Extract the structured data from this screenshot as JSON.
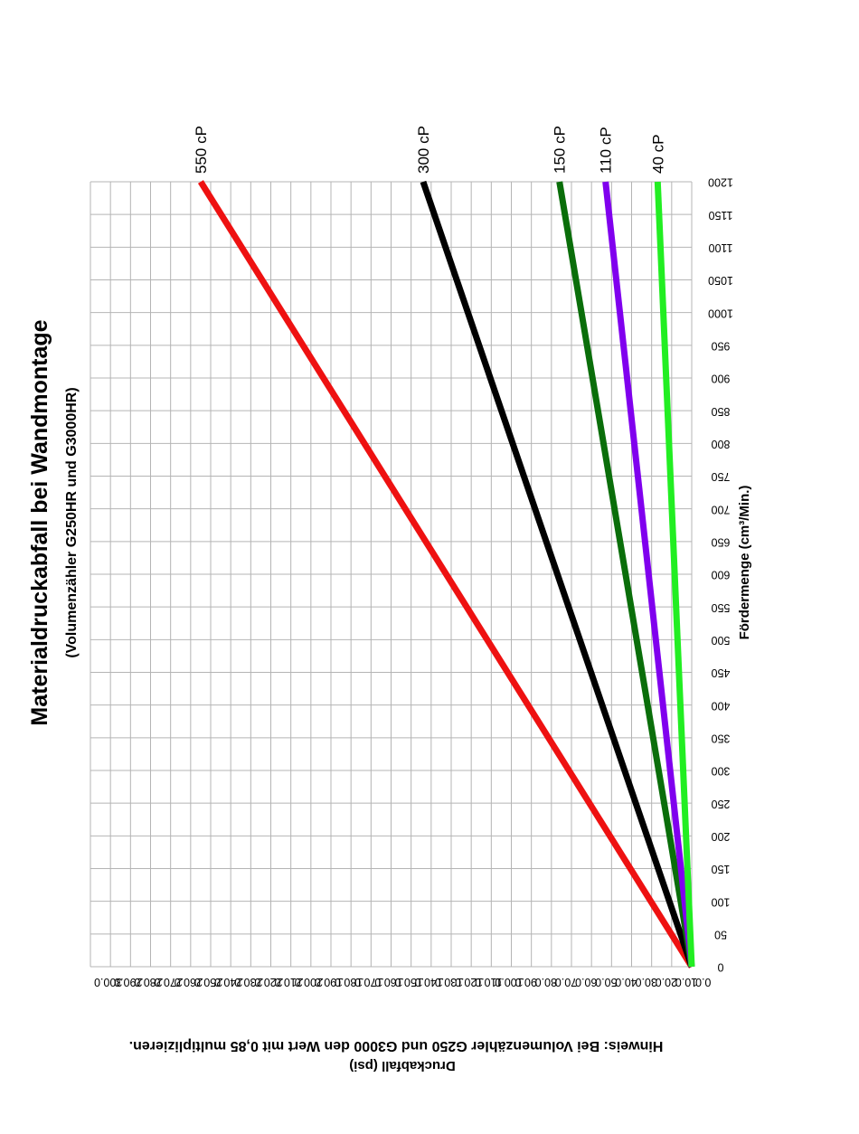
{
  "chart_data": {
    "type": "line",
    "title": "Materialdruckabfall bei Wandmontage",
    "subtitle": "(Volumenzähler G250HR und G3000HR)",
    "xlabel": "Fördermenge (cm³/Min.)",
    "ylabel": "Druckabfall (psi)",
    "note": "Hinweis: Bei Volumenzähler G250 und G3000 den Wert mit 0,85 multiplizieren.",
    "xlim": [
      0,
      1200
    ],
    "ylim": [
      0,
      300
    ],
    "grid": true,
    "x_ticks": [
      "0",
      "50",
      "100",
      "150",
      "200",
      "250",
      "300",
      "350",
      "400",
      "450",
      "500",
      "550",
      "600",
      "650",
      "700",
      "750",
      "800",
      "850",
      "900",
      "950",
      "1000",
      "1050",
      "1100",
      "1150",
      "1200"
    ],
    "y_ticks": [
      "0.0",
      "10.0",
      "20.0",
      "30.0",
      "40.0",
      "50.0",
      "60.0",
      "70.0",
      "80.0",
      "90.0",
      "100.0",
      "110.0",
      "120.0",
      "130.0",
      "140.0",
      "150.0",
      "160.0",
      "170.0",
      "180.0",
      "190.0",
      "200.0",
      "210.0",
      "220.0",
      "230.0",
      "240.0",
      "250.0",
      "260.0",
      "270.0",
      "280.0",
      "290.0",
      "300.0"
    ],
    "series": [
      {
        "name": "550 cP",
        "color": "#ee1111",
        "x": [
          0,
          1200
        ],
        "y": [
          0,
          245
        ]
      },
      {
        "name": "300 cP",
        "color": "#000000",
        "x": [
          0,
          1200
        ],
        "y": [
          0,
          134
        ]
      },
      {
        "name": "150 cP",
        "color": "#0a6e0a",
        "x": [
          0,
          1200
        ],
        "y": [
          0,
          66
        ]
      },
      {
        "name": "110 cP",
        "color": "#8000ee",
        "x": [
          0,
          1200
        ],
        "y": [
          0,
          43
        ]
      },
      {
        "name": "40 cP",
        "color": "#22ee22",
        "x": [
          0,
          1200
        ],
        "y": [
          0,
          17
        ]
      }
    ]
  }
}
